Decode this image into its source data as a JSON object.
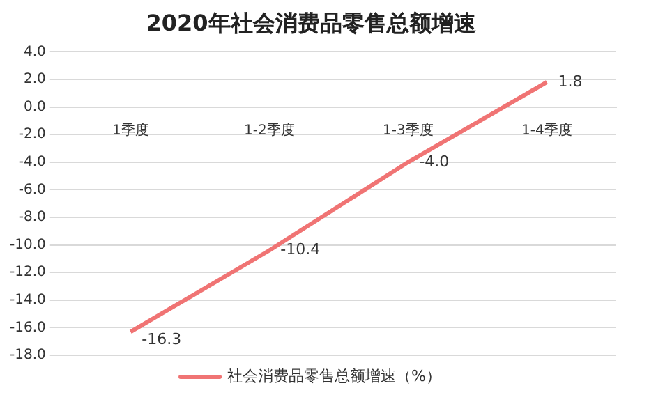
{
  "chart_data": {
    "type": "line",
    "title": "2020年社会消费品零售总额增速",
    "categories": [
      "1季度",
      "1-2季度",
      "1-3季度",
      "1-4季度"
    ],
    "series": [
      {
        "name": "社会消费品零售总额增速（%）",
        "color": "#f07474",
        "values": [
          -16.3,
          -10.4,
          -4.0,
          1.8
        ]
      }
    ],
    "value_labels": [
      "-16.3",
      "-10.4",
      "-4.0",
      "1.8"
    ],
    "ylim": [
      -18,
      4
    ],
    "yticks": [
      {
        "value": 4,
        "label": "4.0"
      },
      {
        "value": 2,
        "label": "2.0"
      },
      {
        "value": 0,
        "label": "0.0"
      },
      {
        "value": -2,
        "label": "-2.0"
      },
      {
        "value": -4,
        "label": "-4.0"
      },
      {
        "value": -6,
        "label": "-6.0"
      },
      {
        "value": -8,
        "label": "-8.0"
      },
      {
        "value": -10,
        "label": "-10.0"
      },
      {
        "value": -12,
        "label": "-12.0"
      },
      {
        "value": -14,
        "label": "-14.0"
      },
      {
        "value": -16,
        "label": "-16.0"
      },
      {
        "value": -18,
        "label": "-18.0"
      }
    ],
    "grid": "y",
    "legend": "bottom",
    "marker": "none",
    "line_style": "solid"
  }
}
